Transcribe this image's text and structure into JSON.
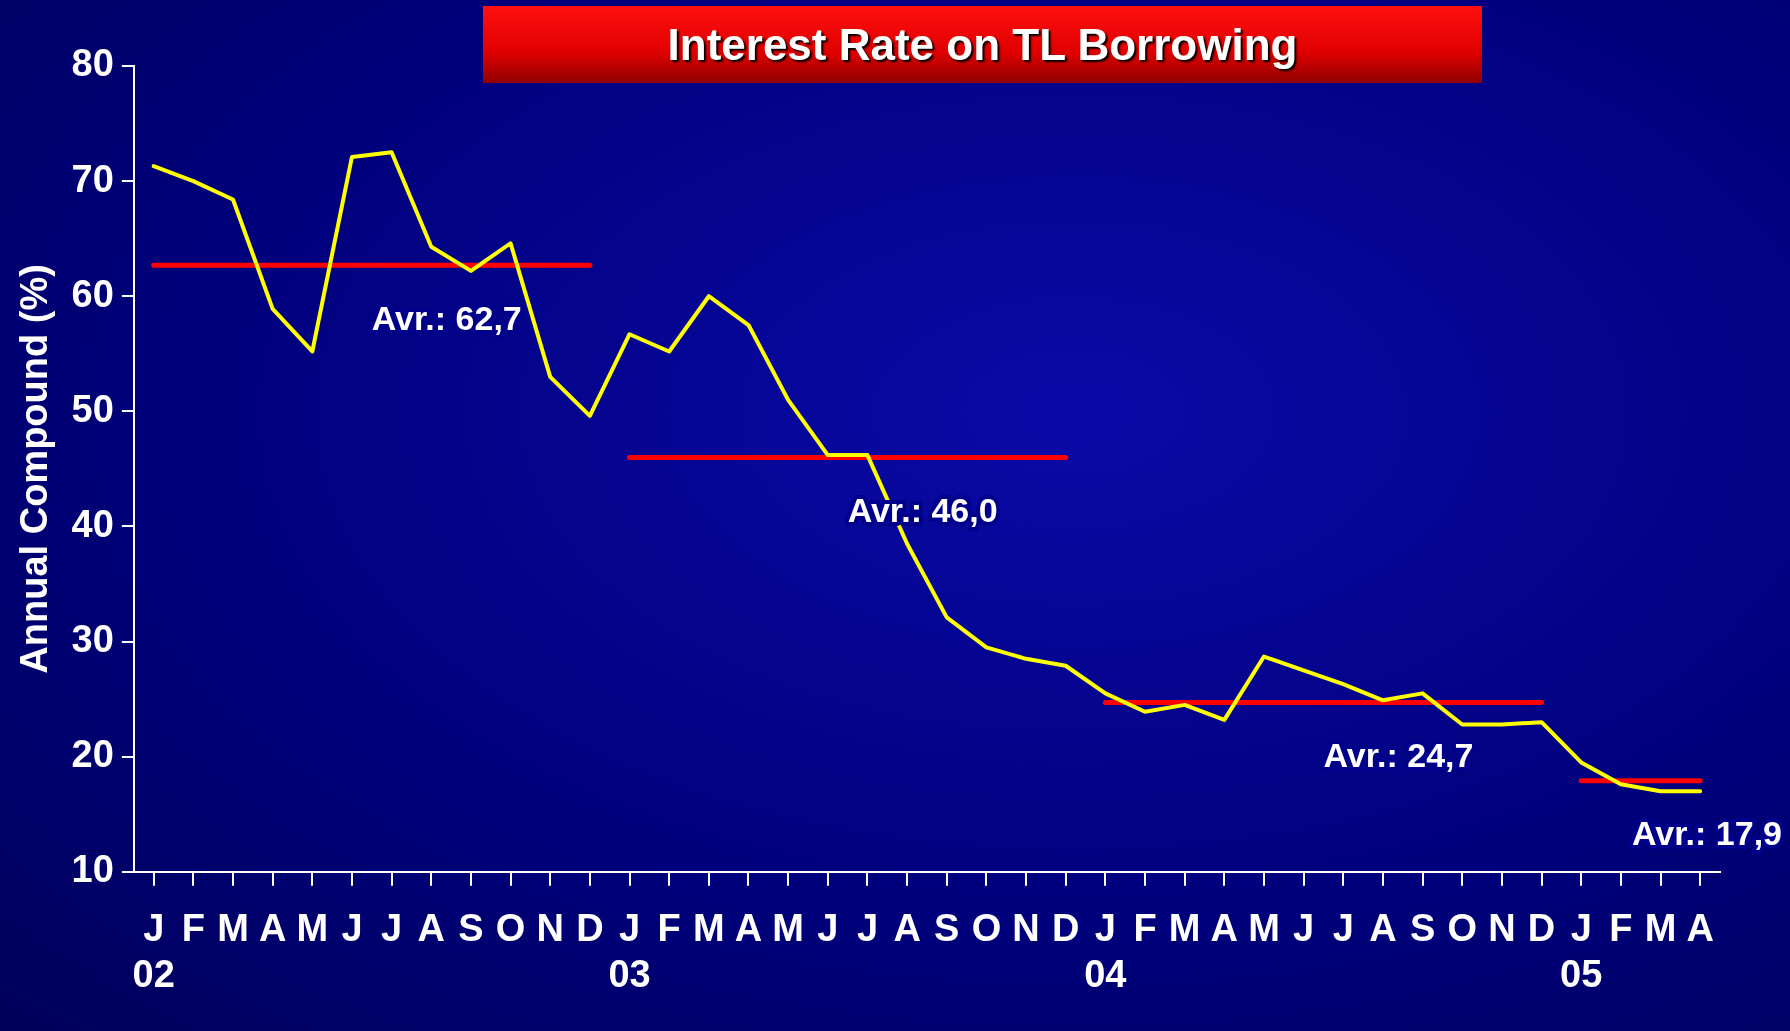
{
  "chart_data": {
    "type": "line",
    "title": "Interest Rate on TL Borrowing",
    "ylabel": "Annual Compound (%)",
    "categories": [
      "J\n02",
      "F",
      "M",
      "A",
      "M",
      "J",
      "J",
      "A",
      "S",
      "O",
      "N",
      "D",
      "J\n03",
      "F",
      "M",
      "A",
      "M",
      "J",
      "J",
      "A",
      "S",
      "O",
      "N",
      "D",
      "J\n04",
      "F",
      "M",
      "A",
      "M",
      "J",
      "J",
      "A",
      "S",
      "O",
      "N",
      "D",
      "J\n05",
      "F",
      "M",
      "A"
    ],
    "series": [
      {
        "color": "#ffff00",
        "values": [
          71.3,
          70,
          68.4,
          58.9,
          55.2,
          72.1,
          72.5,
          64.3,
          62.2,
          64.6,
          53,
          49.6,
          56.7,
          55.2,
          60,
          57.5,
          51,
          46.2,
          46.2,
          38.5,
          32.1,
          29.5,
          28.5,
          27.9,
          25.5,
          23.9,
          24.5,
          23.2,
          28.7,
          27.5,
          26.3,
          24.9,
          25.5,
          22.8,
          22.8,
          23,
          19.5,
          17.6,
          17,
          17
        ]
      },
      {
        "name": "Avr.: 62,7",
        "color": "#ff0000",
        "values": [
          62.7,
          62.7,
          62.7,
          62.7,
          62.7,
          62.7,
          62.7,
          62.7,
          62.7,
          62.7,
          62.7,
          62.7,
          null,
          null,
          null,
          null,
          null,
          null,
          null,
          null,
          null,
          null,
          null,
          null,
          null,
          null,
          null,
          null,
          null,
          null,
          null,
          null,
          null,
          null,
          null,
          null,
          null,
          null,
          null,
          null
        ]
      },
      {
        "name": "Avr.: 46,0",
        "color": "#ff0000",
        "values": [
          null,
          null,
          null,
          null,
          null,
          null,
          null,
          null,
          null,
          null,
          null,
          null,
          46,
          46,
          46,
          46,
          46,
          46,
          46,
          46,
          46,
          46,
          46,
          46,
          null,
          null,
          null,
          null,
          null,
          null,
          null,
          null,
          null,
          null,
          null,
          null,
          null,
          null,
          null,
          null
        ]
      },
      {
        "name": "Avr.: 24,7",
        "color": "#ff0000",
        "values": [
          null,
          null,
          null,
          null,
          null,
          null,
          null,
          null,
          null,
          null,
          null,
          null,
          null,
          null,
          null,
          null,
          null,
          null,
          null,
          null,
          null,
          null,
          null,
          null,
          24.7,
          24.7,
          24.7,
          24.7,
          24.7,
          24.7,
          24.7,
          24.7,
          24.7,
          24.7,
          24.7,
          24.7,
          null,
          null,
          null,
          null
        ]
      },
      {
        "name": "Avr.: 17,9",
        "color": "#ff0000",
        "values": [
          null,
          null,
          null,
          null,
          null,
          null,
          null,
          null,
          null,
          null,
          null,
          null,
          null,
          null,
          null,
          null,
          null,
          null,
          null,
          null,
          null,
          null,
          null,
          null,
          null,
          null,
          null,
          null,
          null,
          null,
          null,
          null,
          null,
          null,
          null,
          null,
          17.9,
          17.9,
          17.9,
          17.9
        ]
      }
    ],
    "ylim": [
      10,
      80
    ],
    "yticks": [
      10,
      20,
      30,
      40,
      50,
      60,
      70,
      80
    ],
    "grid": false,
    "legend": false,
    "marker": "none",
    "line_style": "solid"
  }
}
